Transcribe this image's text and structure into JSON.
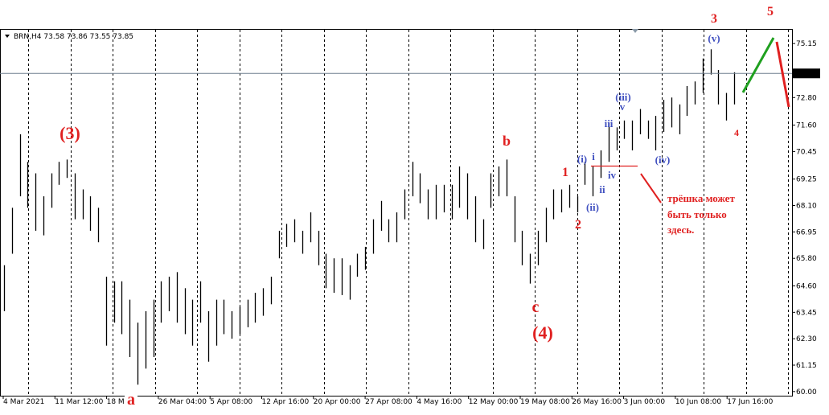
{
  "chart_data": {
    "type": "range_bar",
    "title": "BRN,H4  73.58 73.86 73.55 73.85",
    "color": "#000000",
    "ylim": [
      59.82,
      75.75
    ],
    "yticks": [
      {
        "value": 60,
        "label": "60.00"
      },
      {
        "value": 61.15,
        "label": "61.15"
      },
      {
        "value": 62.3,
        "label": "62.30"
      },
      {
        "value": 63.45,
        "label": "63.45"
      },
      {
        "value": 64.6,
        "label": "64.60"
      },
      {
        "value": 65.8,
        "label": "65.80"
      },
      {
        "value": 66.95,
        "label": "66.95"
      },
      {
        "value": 68.1,
        "label": "68.10"
      },
      {
        "value": 69.25,
        "label": "69.25"
      },
      {
        "value": 70.45,
        "label": "70.45"
      },
      {
        "value": 71.6,
        "label": "71.60"
      },
      {
        "value": 72.8,
        "label": "72.80"
      },
      {
        "value": 75.15,
        "label": "75.15"
      }
    ],
    "current_price": {
      "value": 73.85,
      "label": "73.85"
    },
    "x_labels": [
      "4 Mar 2021",
      "11 Mar 12:00",
      "18 M",
      "26 Mar 04:00",
      "5 Apr 08:00",
      "12 Apr 16:00",
      "20 Apr 00:00",
      "27 Apr 08:00",
      "4 May 16:00",
      "12 May 00:00",
      "19 May 08:00",
      "26 May 16:00",
      "3 Jun 00:00",
      "10 Jun 08:00",
      "17 Jun 16:00"
    ],
    "high": [
      65.5,
      68,
      71.2,
      70,
      69.5,
      68.5,
      69.5,
      70,
      70.1,
      69.5,
      68.8,
      68.5,
      68,
      65,
      64.8,
      64.8,
      64,
      63,
      63.5,
      64,
      64.8,
      65,
      65.2,
      64.5,
      64,
      64.8,
      63.5,
      64,
      64,
      63.5,
      63.7,
      64,
      64.3,
      64.5,
      65,
      67,
      67.3,
      67.5,
      67,
      67.8,
      67,
      66,
      65.8,
      65.8,
      65.5,
      66,
      66.3,
      67.5,
      68.3,
      67.5,
      67.8,
      68.8,
      70,
      69.5,
      68.8,
      69,
      69,
      69,
      69.8,
      69.5,
      68.5,
      67.5,
      69.5,
      69.8,
      70.1,
      68.5,
      67,
      66,
      67,
      68,
      68.8,
      68.8,
      69,
      68.5,
      70,
      69.8,
      70.5,
      71.7,
      71.5,
      71.8,
      71.8,
      72.3,
      71.8,
      72,
      72.7,
      72.8,
      72.5,
      73.3,
      73.5,
      74.5,
      74.9,
      74,
      73,
      73.9
    ],
    "low": [
      63.5,
      66,
      68.5,
      68,
      67,
      66.8,
      68,
      69,
      69.3,
      67.5,
      67.5,
      67,
      66.5,
      62,
      63,
      62.5,
      61.5,
      60.3,
      61,
      61.5,
      63,
      63.5,
      63,
      62.5,
      62,
      63,
      61.3,
      62,
      62.5,
      62.3,
      62.5,
      62.8,
      63,
      63.3,
      63.8,
      65.8,
      66.3,
      66.5,
      66,
      66.5,
      65.5,
      64.5,
      64.3,
      64.2,
      64,
      65,
      65.3,
      66,
      67,
      66.5,
      66.5,
      67.5,
      68.5,
      68.2,
      67.5,
      67.5,
      67.8,
      67.5,
      68,
      67.5,
      66.5,
      66.2,
      68,
      68.5,
      68.5,
      66.5,
      65.5,
      64.7,
      65.5,
      66.5,
      67.5,
      67.8,
      68,
      67.8,
      69,
      68.5,
      69.3,
      70,
      70.5,
      71,
      70.5,
      71.2,
      71,
      70.5,
      71.3,
      71.5,
      71.2,
      72,
      72.5,
      73,
      73.8,
      72.5,
      71.8,
      72.5
    ],
    "annotations": [
      {
        "text": "(3)",
        "color": "#e02020"
      },
      {
        "text": "a",
        "color": "#e02020"
      },
      {
        "text": "b",
        "color": "#e02020"
      },
      {
        "text": "c",
        "color": "#e02020"
      },
      {
        "text": "(4)",
        "color": "#e02020"
      },
      {
        "text": "1",
        "color": "#e02020"
      },
      {
        "text": "2",
        "color": "#e02020"
      },
      {
        "text": "3",
        "color": "#e02020"
      },
      {
        "text": "4",
        "color": "#e02020"
      },
      {
        "text": "5",
        "color": "#e02020"
      },
      {
        "text": "(i)",
        "color": "#4050c0"
      },
      {
        "text": "i",
        "color": "#4050c0"
      },
      {
        "text": "(ii)",
        "color": "#4050c0"
      },
      {
        "text": "ii",
        "color": "#4050c0"
      },
      {
        "text": "iii",
        "color": "#4050c0"
      },
      {
        "text": "(iii)",
        "color": "#4050c0"
      },
      {
        "text": "v",
        "color": "#4050c0"
      },
      {
        "text": "iv",
        "color": "#4050c0"
      },
      {
        "text": "(iv)",
        "color": "#4050c0"
      },
      {
        "text": "(v)",
        "color": "#4050c0"
      },
      {
        "text": "трёшка может",
        "color": "#e02020"
      },
      {
        "text": "быть только",
        "color": "#e02020"
      },
      {
        "text": "здесь.",
        "color": "#e02020"
      }
    ]
  }
}
